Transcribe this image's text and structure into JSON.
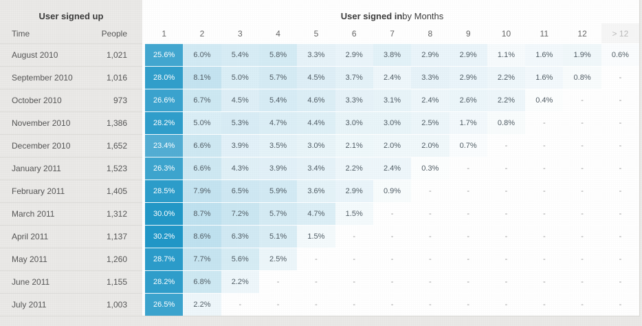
{
  "left_panel": {
    "title": "User signed up",
    "col_time": "Time",
    "col_people": "People"
  },
  "right_panel": {
    "title_bold": "User signed in",
    "title_rest": " by Months"
  },
  "colors": {
    "accent": "#2096c6",
    "panel_bg": "#ebeae8",
    "table_bg": "#ffffff"
  },
  "chart_data": {
    "type": "heatmap",
    "title": "User signed in by Months",
    "row_group_title": "User signed up",
    "row_label_header": "Time",
    "row_count_header": "People",
    "columns": [
      "1",
      "2",
      "3",
      "4",
      "5",
      "6",
      "7",
      "8",
      "9",
      "10",
      "11",
      "12",
      "> 12"
    ],
    "value_unit": "%",
    "empty_marker": "-",
    "color_scale": {
      "base": "#2096c6",
      "max_value": 30.2,
      "white_text_threshold": 16
    },
    "rows": [
      {
        "time": "August 2010",
        "people": "1,021",
        "values": [
          25.6,
          6.0,
          5.4,
          5.8,
          3.3,
          2.9,
          3.8,
          2.9,
          2.9,
          1.1,
          1.6,
          1.9,
          0.6
        ]
      },
      {
        "time": "September 2010",
        "people": "1,016",
        "values": [
          28.0,
          8.1,
          5.0,
          5.7,
          4.5,
          3.7,
          2.4,
          3.3,
          2.9,
          2.2,
          1.6,
          0.8,
          null
        ]
      },
      {
        "time": "October 2010",
        "people": "973",
        "values": [
          26.6,
          6.7,
          4.5,
          5.4,
          4.6,
          3.3,
          3.1,
          2.4,
          2.6,
          2.2,
          0.4,
          null,
          null
        ]
      },
      {
        "time": "November 2010",
        "people": "1,386",
        "values": [
          28.2,
          5.0,
          5.3,
          4.7,
          4.4,
          3.0,
          3.0,
          2.5,
          1.7,
          0.8,
          null,
          null,
          null
        ]
      },
      {
        "time": "December 2010",
        "people": "1,652",
        "values": [
          23.4,
          6.6,
          3.9,
          3.5,
          3.0,
          2.1,
          2.0,
          2.0,
          0.7,
          null,
          null,
          null,
          null
        ]
      },
      {
        "time": "January 2011",
        "people": "1,523",
        "values": [
          26.3,
          6.6,
          4.3,
          3.9,
          3.4,
          2.2,
          2.4,
          0.3,
          null,
          null,
          null,
          null,
          null
        ]
      },
      {
        "time": "February 2011",
        "people": "1,405",
        "values": [
          28.5,
          7.9,
          6.5,
          5.9,
          3.6,
          2.9,
          0.9,
          null,
          null,
          null,
          null,
          null,
          null
        ]
      },
      {
        "time": "March 2011",
        "people": "1,312",
        "values": [
          30.0,
          8.7,
          7.2,
          5.7,
          4.7,
          1.5,
          null,
          null,
          null,
          null,
          null,
          null,
          null
        ]
      },
      {
        "time": "April 2011",
        "people": "1,137",
        "values": [
          30.2,
          8.6,
          6.3,
          5.1,
          1.5,
          null,
          null,
          null,
          null,
          null,
          null,
          null,
          null
        ]
      },
      {
        "time": "May 2011",
        "people": "1,260",
        "values": [
          28.7,
          7.7,
          5.6,
          2.5,
          null,
          null,
          null,
          null,
          null,
          null,
          null,
          null,
          null
        ]
      },
      {
        "time": "June 2011",
        "people": "1,155",
        "values": [
          28.2,
          6.8,
          2.2,
          null,
          null,
          null,
          null,
          null,
          null,
          null,
          null,
          null,
          null
        ]
      },
      {
        "time": "July 2011",
        "people": "1,003",
        "values": [
          26.5,
          2.2,
          null,
          null,
          null,
          null,
          null,
          null,
          null,
          null,
          null,
          null,
          null
        ]
      }
    ]
  }
}
